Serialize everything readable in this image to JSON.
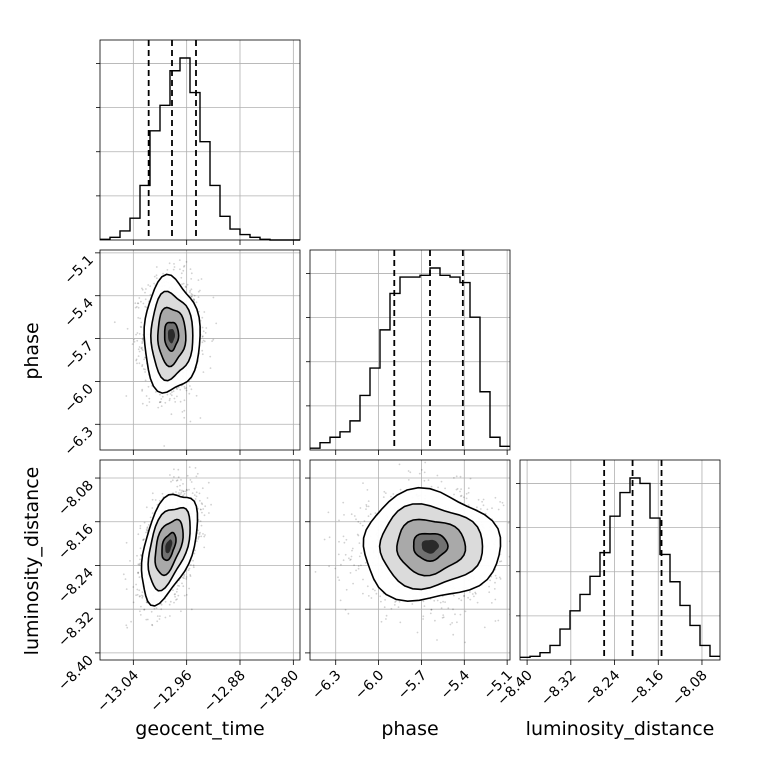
{
  "chart_data": {
    "type": "corner",
    "parameters": [
      "geocent_time",
      "phase",
      "luminosity_distance"
    ],
    "axes": {
      "geocent_time": {
        "label": "geocent_time",
        "range": [
          -13.09,
          -12.79
        ],
        "ticks": [
          -13.04,
          -12.96,
          -12.88,
          -12.8
        ],
        "tick_labels": [
          "−13.04",
          "−12.96",
          "−12.88",
          "−12.80"
        ]
      },
      "phase": {
        "label": "phase",
        "range": [
          -6.48,
          -5.08
        ],
        "ticks": [
          -6.3,
          -6.0,
          -5.7,
          -5.4,
          -5.1
        ],
        "tick_labels": [
          "−6.3",
          "−6.0",
          "−5.7",
          "−5.4",
          "−5.1"
        ]
      },
      "luminosity_distance": {
        "label": "luminosity_distance",
        "range": [
          -8.413,
          -8.047
        ],
        "ticks": [
          -8.4,
          -8.32,
          -8.24,
          -8.16,
          -8.08
        ],
        "tick_labels": [
          "−8.40",
          "−8.32",
          "−8.24",
          "−8.16",
          "−8.08"
        ]
      }
    },
    "histograms": {
      "geocent_time": {
        "bins": [
          -13.09,
          -13.075,
          -13.06,
          -13.045,
          -13.03,
          -13.015,
          -13.0,
          -12.985,
          -12.97,
          -12.955,
          -12.94,
          -12.925,
          -12.91,
          -12.895,
          -12.88,
          -12.865,
          -12.85,
          -12.835,
          -12.82,
          -12.805,
          -12.79
        ],
        "counts": [
          0.004,
          0.015,
          0.05,
          0.12,
          0.3,
          0.6,
          0.74,
          0.93,
          1.0,
          0.81,
          0.54,
          0.3,
          0.13,
          0.06,
          0.03,
          0.015,
          0.004,
          0.0,
          0.0,
          0.0
        ],
        "quantiles": [
          -13.017,
          -12.982,
          -12.946
        ]
      },
      "phase": {
        "bins": [
          -6.48,
          -6.41,
          -6.34,
          -6.27,
          -6.2,
          -6.13,
          -6.06,
          -5.99,
          -5.92,
          -5.85,
          -5.78,
          -5.71,
          -5.64,
          -5.57,
          -5.5,
          -5.43,
          -5.36,
          -5.29,
          -5.22,
          -5.15,
          -5.08
        ],
        "counts": [
          0.01,
          0.04,
          0.07,
          0.1,
          0.16,
          0.3,
          0.45,
          0.66,
          0.86,
          0.95,
          0.95,
          0.96,
          1.0,
          0.96,
          0.95,
          0.92,
          0.73,
          0.32,
          0.07,
          0.02
        ],
        "quantiles": [
          -5.89,
          -5.64,
          -5.41
        ]
      },
      "luminosity_distance": {
        "bins": [
          -8.413,
          -8.3947,
          -8.3764,
          -8.3581,
          -8.3398,
          -8.3215,
          -8.3032,
          -8.2849,
          -8.2666,
          -8.2483,
          -8.23,
          -8.2117,
          -8.1934,
          -8.1751,
          -8.1568,
          -8.1385,
          -8.1202,
          -8.1019,
          -8.0836,
          -8.0653,
          -8.047
        ],
        "counts": [
          0.015,
          0.02,
          0.04,
          0.08,
          0.17,
          0.27,
          0.36,
          0.46,
          0.59,
          0.79,
          0.92,
          1.0,
          0.97,
          0.78,
          0.58,
          0.43,
          0.3,
          0.19,
          0.08,
          0.02
        ],
        "quantiles": [
          -8.259,
          -8.207,
          -8.154
        ]
      }
    },
    "joint": [
      {
        "x": "geocent_time",
        "y": "phase",
        "center": [
          -12.983,
          -5.68
        ],
        "sd": [
          0.021,
          0.2
        ],
        "corr": 0.0
      },
      {
        "x": "geocent_time",
        "y": "luminosity_distance",
        "center": [
          -12.987,
          -8.205
        ],
        "sd": [
          0.021,
          0.05
        ],
        "corr": 0.45
      },
      {
        "x": "phase",
        "y": "luminosity_distance",
        "center": [
          -5.64,
          -8.205
        ],
        "sd": [
          0.24,
          0.05
        ],
        "corr": 0.0
      }
    ],
    "contour_levels_sigma": [
      0.5,
      1.0,
      1.5,
      2.0
    ],
    "grid": true,
    "colors": {
      "line": "#000000",
      "scatter": "#000000",
      "grid": "#b0b0b0",
      "density": "#000000"
    }
  }
}
